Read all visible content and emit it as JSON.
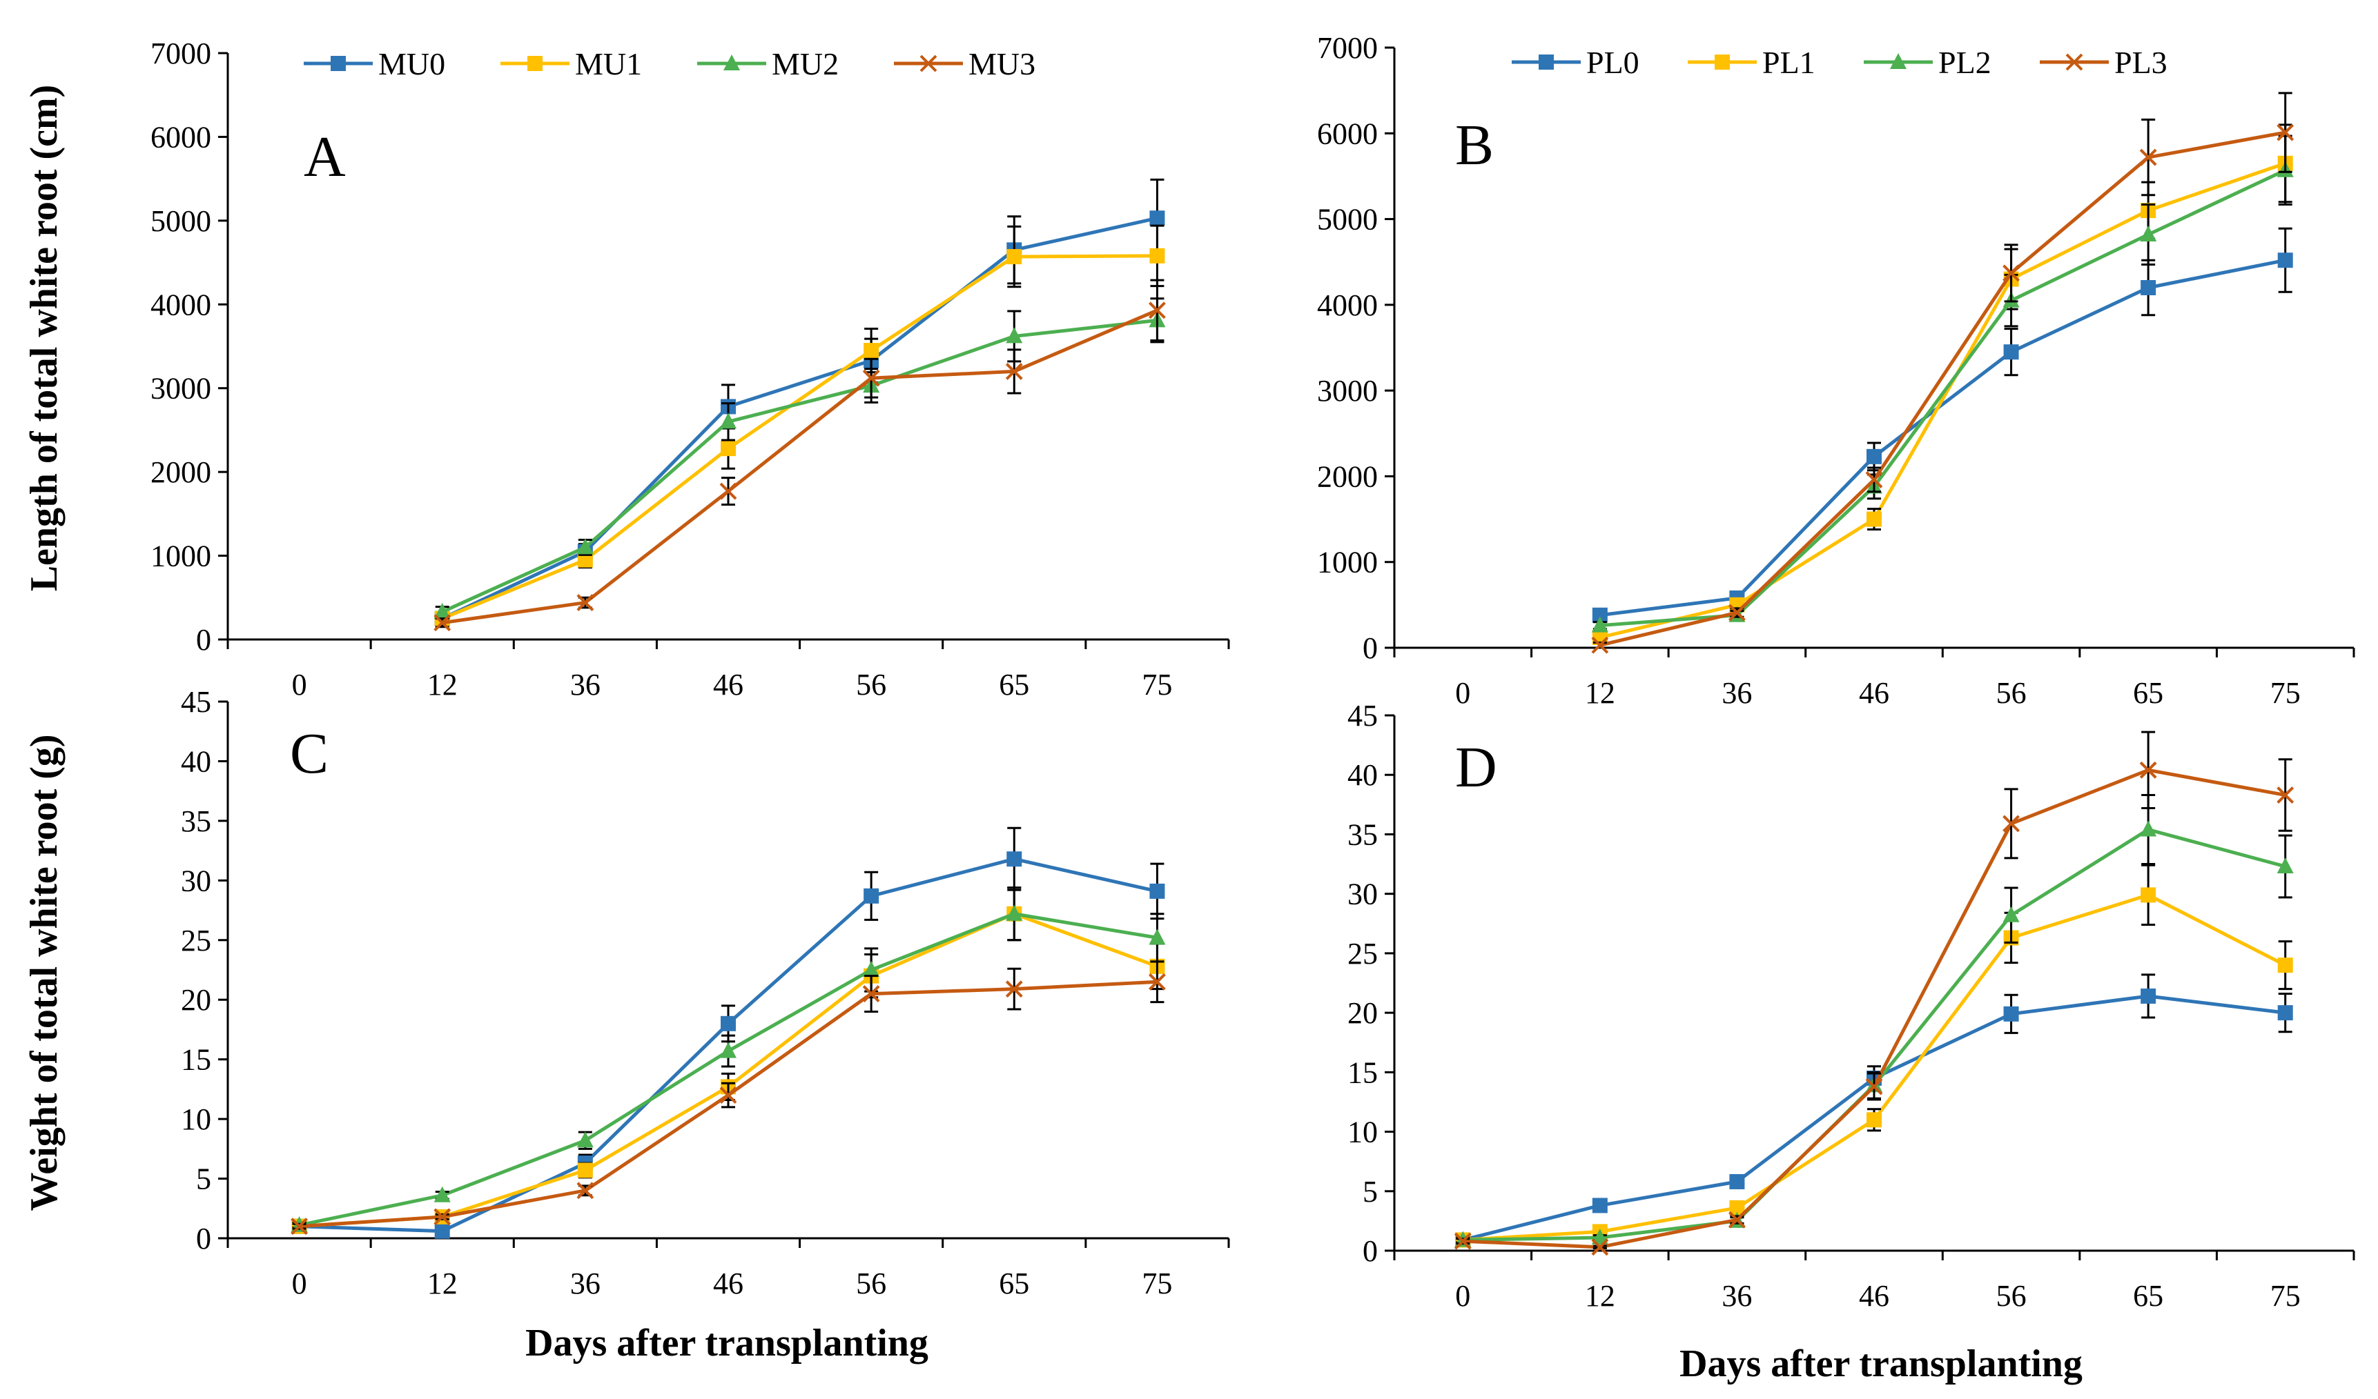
{
  "series_styles": {
    "0": {
      "color": "#2E75B6",
      "marker": "square"
    },
    "1": {
      "color": "#FFC000",
      "marker": "square"
    },
    "2": {
      "color": "#4CAF50",
      "marker": "triangle"
    },
    "3": {
      "color": "#C55A11",
      "marker": "x"
    }
  },
  "shared_labels": {
    "ylabel_top": "Length of total white root (cm)",
    "ylabel_bottom": "Weight of total white root (g)",
    "xlabel": "Days after transplanting"
  },
  "chart_data": [
    {
      "panel": "A",
      "type": "line",
      "categories": [
        "0",
        "12",
        "36",
        "46",
        "56",
        "65",
        "75"
      ],
      "ylim": [
        0,
        7000
      ],
      "ytick_step": 1000,
      "ylabel": "Length of total white root (cm)",
      "xlabel": "",
      "series": [
        {
          "name": "MU0",
          "values": [
            null,
            250,
            1050,
            2780,
            3330,
            4650,
            5030
          ],
          "errors": [
            0,
            60,
            90,
            260,
            260,
            400,
            460
          ]
        },
        {
          "name": "MU1",
          "values": [
            null,
            250,
            950,
            2280,
            3450,
            4570,
            4580
          ],
          "errors": [
            0,
            60,
            90,
            240,
            260,
            360,
            360
          ]
        },
        {
          "name": "MU2",
          "values": [
            null,
            330,
            1100,
            2600,
            3030,
            3620,
            3810
          ],
          "errors": [
            0,
            60,
            90,
            220,
            200,
            300,
            260
          ]
        },
        {
          "name": "MU3",
          "values": [
            null,
            200,
            440,
            1770,
            3120,
            3200,
            3930
          ],
          "errors": [
            0,
            50,
            60,
            160,
            230,
            260,
            360
          ]
        }
      ]
    },
    {
      "panel": "B",
      "type": "line",
      "categories": [
        "0",
        "12",
        "36",
        "46",
        "56",
        "65",
        "75"
      ],
      "ylim": [
        0,
        7000
      ],
      "ytick_step": 1000,
      "ylabel": "",
      "xlabel": "",
      "series": [
        {
          "name": "PL0",
          "values": [
            null,
            380,
            580,
            2230,
            3450,
            4200,
            4520
          ],
          "errors": [
            0,
            50,
            60,
            160,
            270,
            320,
            370
          ]
        },
        {
          "name": "PL1",
          "values": [
            null,
            120,
            500,
            1500,
            4300,
            5100,
            5650
          ],
          "errors": [
            0,
            40,
            60,
            120,
            350,
            330,
            450
          ]
        },
        {
          "name": "PL2",
          "values": [
            null,
            260,
            380,
            1880,
            4050,
            4820,
            5570
          ],
          "errors": [
            0,
            40,
            50,
            140,
            300,
            350,
            400
          ]
        },
        {
          "name": "PL3",
          "values": [
            null,
            30,
            410,
            1960,
            4370,
            5720,
            6010
          ],
          "errors": [
            0,
            30,
            50,
            140,
            330,
            440,
            460
          ]
        }
      ]
    },
    {
      "panel": "C",
      "type": "line",
      "categories": [
        "0",
        "12",
        "36",
        "46",
        "56",
        "65",
        "75"
      ],
      "ylim": [
        0,
        45
      ],
      "ytick_step": 5,
      "ylabel": "Weight of total white root (g)",
      "xlabel": "Days after transplanting",
      "series": [
        {
          "name": "MU0",
          "values": [
            1.0,
            0.6,
            6.3,
            18.0,
            28.7,
            31.8,
            29.1
          ],
          "errors": [
            0.2,
            0.2,
            0.7,
            1.5,
            2.0,
            2.6,
            2.3
          ]
        },
        {
          "name": "MU1",
          "values": [
            1.0,
            1.8,
            5.7,
            12.7,
            22.0,
            27.2,
            22.8
          ],
          "errors": [
            0.2,
            0.2,
            0.6,
            1.1,
            1.8,
            2.2,
            1.9
          ]
        },
        {
          "name": "MU2",
          "values": [
            1.1,
            3.6,
            8.2,
            15.7,
            22.5,
            27.2,
            25.2
          ],
          "errors": [
            0.2,
            0.3,
            0.7,
            1.3,
            1.8,
            2.2,
            2.0
          ]
        },
        {
          "name": "MU3",
          "values": [
            1.0,
            1.8,
            4.0,
            12.0,
            20.5,
            20.9,
            21.5
          ],
          "errors": [
            0.2,
            0.2,
            0.4,
            1.0,
            1.5,
            1.7,
            1.7
          ]
        }
      ]
    },
    {
      "panel": "D",
      "type": "line",
      "categories": [
        "0",
        "12",
        "36",
        "46",
        "56",
        "65",
        "75"
      ],
      "ylim": [
        0,
        45
      ],
      "ytick_step": 5,
      "ylabel": "",
      "xlabel": "Days after transplanting",
      "series": [
        {
          "name": "PL0",
          "values": [
            0.9,
            3.8,
            5.8,
            14.5,
            19.9,
            21.4,
            20.0
          ],
          "errors": [
            0.2,
            0.3,
            0.4,
            1.0,
            1.6,
            1.8,
            1.6
          ]
        },
        {
          "name": "PL1",
          "values": [
            0.9,
            1.6,
            3.6,
            11.0,
            26.3,
            29.9,
            24.0
          ],
          "errors": [
            0.2,
            0.2,
            0.4,
            0.9,
            2.1,
            2.5,
            2.0
          ]
        },
        {
          "name": "PL2",
          "values": [
            0.9,
            1.1,
            2.5,
            13.9,
            28.2,
            35.4,
            32.3
          ],
          "errors": [
            0.2,
            0.2,
            0.3,
            1.1,
            2.3,
            2.9,
            2.6
          ]
        },
        {
          "name": "PL3",
          "values": [
            0.8,
            0.3,
            2.6,
            13.8,
            35.9,
            40.4,
            38.3
          ],
          "errors": [
            0.2,
            0.1,
            0.3,
            1.1,
            2.9,
            3.2,
            3.0
          ]
        }
      ]
    }
  ]
}
